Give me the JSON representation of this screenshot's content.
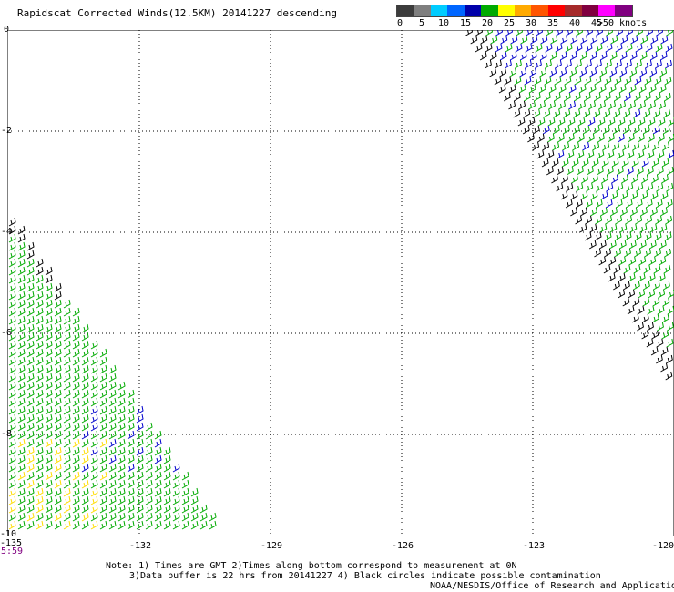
{
  "title": "Rapidscat Corrected Winds(12.5KM) 20141227 descending",
  "legend": {
    "labels": [
      "0",
      "5",
      "10",
      "15",
      "20",
      "25",
      "30",
      "35",
      "40",
      "45",
      ">50 knots"
    ],
    "colors": [
      "#3c3c3c",
      "#7f7f7f",
      "#00ccff",
      "#0066ff",
      "#0000aa",
      "#00aa00",
      "#ffff00",
      "#ffaa00",
      "#ff5500",
      "#ff0000",
      "#a52a2a",
      "#800040",
      "#ff00ff",
      "#800080"
    ]
  },
  "axes": {
    "y_ticks": [
      "0",
      "-2",
      "-4",
      "-6",
      "-8",
      "-10"
    ],
    "x_ticks": [
      "-135",
      "-132",
      "-129",
      "-126",
      "-123",
      "-120"
    ]
  },
  "time_label": "5:59",
  "notes": [
    "Note: 1) Times are GMT 2)Times along bottom correspond to measurement at 0N",
    "3)Data buffer is 22 hrs from 20141227 4) Black circles indicate possible contamination"
  ],
  "credit": "NOAA/NESDIS/Office of Research and Applications"
}
